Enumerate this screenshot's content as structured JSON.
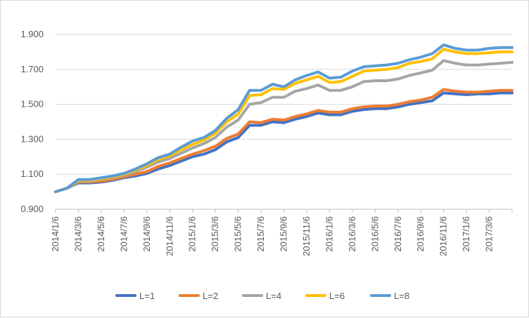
{
  "chart_data": {
    "type": "line",
    "title": "",
    "xlabel": "",
    "ylabel": "",
    "ylim": [
      0.9,
      1.9
    ],
    "y_ticks": [
      "0.900",
      "1.100",
      "1.300",
      "1.500",
      "1.700",
      "1.900"
    ],
    "x_ticks": [
      "2014/1/6",
      "2014/3/6",
      "2014/5/6",
      "2014/7/6",
      "2014/9/6",
      "2014/11/6",
      "2015/1/6",
      "2015/3/6",
      "2015/5/6",
      "2015/7/6",
      "2015/9/6",
      "2015/11/6",
      "2016/1/6",
      "2016/3/6",
      "2016/5/6",
      "2016/7/6",
      "2016/9/6",
      "2016/11/6",
      "2017/1/6",
      "2017/3/6"
    ],
    "x": [
      "2014/1/6",
      "2014/2/6",
      "2014/3/6",
      "2014/4/6",
      "2014/5/6",
      "2014/6/6",
      "2014/7/6",
      "2014/8/6",
      "2014/9/6",
      "2014/10/6",
      "2014/11/6",
      "2014/12/6",
      "2015/1/6",
      "2015/2/6",
      "2015/3/6",
      "2015/4/6",
      "2015/5/6",
      "2015/6/6",
      "2015/7/6",
      "2015/8/6",
      "2015/9/6",
      "2015/10/6",
      "2015/11/6",
      "2015/12/6",
      "2016/1/6",
      "2016/2/6",
      "2016/3/6",
      "2016/4/6",
      "2016/5/6",
      "2016/6/6",
      "2016/7/6",
      "2016/8/6",
      "2016/9/6",
      "2016/10/6",
      "2016/11/6",
      "2016/12/6",
      "2017/1/6",
      "2017/2/6",
      "2017/3/6",
      "2017/4/6",
      "2017/5/6"
    ],
    "grid": true,
    "legend_position": "bottom",
    "series": [
      {
        "name": "L=1",
        "color": "#4472C4",
        "values": [
          1.0,
          1.02,
          1.05,
          1.05,
          1.055,
          1.065,
          1.08,
          1.09,
          1.105,
          1.13,
          1.15,
          1.175,
          1.2,
          1.215,
          1.24,
          1.285,
          1.31,
          1.38,
          1.38,
          1.4,
          1.395,
          1.415,
          1.43,
          1.45,
          1.44,
          1.44,
          1.46,
          1.47,
          1.475,
          1.475,
          1.485,
          1.5,
          1.51,
          1.52,
          1.565,
          1.56,
          1.555,
          1.56,
          1.56,
          1.565,
          1.565
        ]
      },
      {
        "name": "L=2",
        "color": "#ED7D31",
        "values": [
          1.0,
          1.02,
          1.055,
          1.055,
          1.06,
          1.07,
          1.085,
          1.1,
          1.115,
          1.145,
          1.165,
          1.19,
          1.215,
          1.235,
          1.26,
          1.305,
          1.33,
          1.4,
          1.395,
          1.415,
          1.41,
          1.43,
          1.445,
          1.465,
          1.455,
          1.455,
          1.475,
          1.485,
          1.49,
          1.49,
          1.5,
          1.515,
          1.525,
          1.54,
          1.585,
          1.575,
          1.57,
          1.57,
          1.575,
          1.58,
          1.58
        ]
      },
      {
        "name": "L=4",
        "color": "#A5A5A5",
        "values": [
          1.0,
          1.02,
          1.06,
          1.06,
          1.07,
          1.08,
          1.095,
          1.115,
          1.14,
          1.17,
          1.19,
          1.22,
          1.25,
          1.275,
          1.31,
          1.37,
          1.41,
          1.5,
          1.51,
          1.54,
          1.54,
          1.575,
          1.59,
          1.61,
          1.58,
          1.58,
          1.6,
          1.63,
          1.635,
          1.635,
          1.645,
          1.665,
          1.68,
          1.695,
          1.75,
          1.735,
          1.725,
          1.725,
          1.73,
          1.735,
          1.74
        ]
      },
      {
        "name": "L=6",
        "color": "#FFC000",
        "values": [
          1.0,
          1.02,
          1.065,
          1.065,
          1.075,
          1.085,
          1.1,
          1.125,
          1.15,
          1.185,
          1.205,
          1.24,
          1.27,
          1.295,
          1.335,
          1.4,
          1.445,
          1.55,
          1.555,
          1.59,
          1.585,
          1.62,
          1.64,
          1.66,
          1.625,
          1.63,
          1.66,
          1.69,
          1.695,
          1.7,
          1.71,
          1.735,
          1.745,
          1.76,
          1.815,
          1.8,
          1.79,
          1.79,
          1.795,
          1.8,
          1.8
        ]
      },
      {
        "name": "L=8",
        "color": "#5B9BD5",
        "values": [
          1.0,
          1.02,
          1.07,
          1.07,
          1.08,
          1.09,
          1.105,
          1.13,
          1.16,
          1.195,
          1.215,
          1.255,
          1.29,
          1.31,
          1.35,
          1.42,
          1.47,
          1.58,
          1.58,
          1.615,
          1.6,
          1.64,
          1.665,
          1.685,
          1.65,
          1.655,
          1.69,
          1.715,
          1.72,
          1.725,
          1.735,
          1.755,
          1.77,
          1.79,
          1.84,
          1.82,
          1.81,
          1.81,
          1.82,
          1.825,
          1.825
        ]
      }
    ]
  }
}
